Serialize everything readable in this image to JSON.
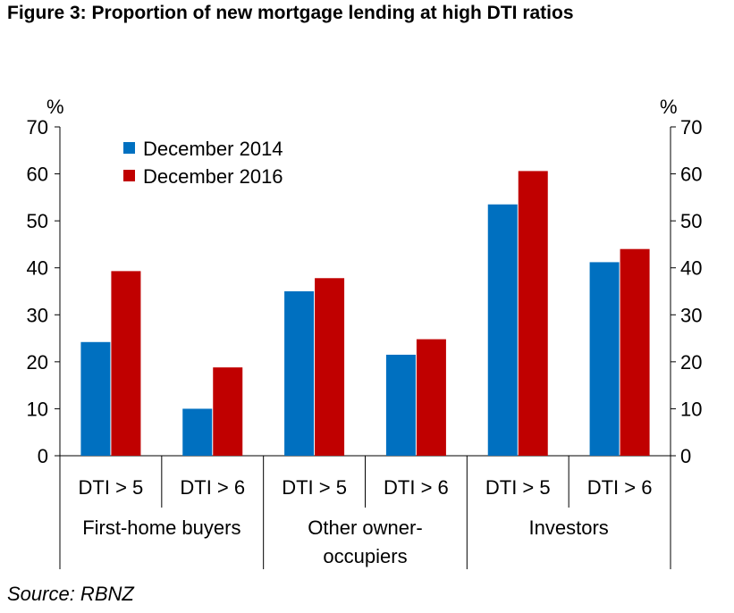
{
  "title": "Figure 3:  Proportion of new mortgage lending at high DTI ratios",
  "source": "Source: RBNZ",
  "colors": {
    "dec2014": "#0070C0",
    "dec2016": "#C00000"
  },
  "chart_data": {
    "type": "bar",
    "title": "Figure 3:  Proportion of new mortgage lending at high DTI ratios",
    "ylabel_left": "%",
    "ylabel_right": "%",
    "ylim": [
      0,
      70
    ],
    "yticks": [
      0,
      10,
      20,
      30,
      40,
      50,
      60,
      70
    ],
    "legend_placement": "top-left",
    "categories": [
      "DTI > 5",
      "DTI > 6",
      "DTI > 5",
      "DTI > 6",
      "DTI > 5",
      "DTI > 6"
    ],
    "groups": [
      {
        "lines": [
          "First-home buyers"
        ]
      },
      {
        "lines": [
          "Other owner-",
          "occupiers"
        ]
      },
      {
        "lines": [
          "Investors"
        ]
      }
    ],
    "series": [
      {
        "name": "December 2014",
        "color": "#0070C0",
        "values": [
          24.2,
          10,
          35,
          21.5,
          53.5,
          41.2
        ]
      },
      {
        "name": "December 2016",
        "color": "#C00000",
        "values": [
          39.3,
          18.8,
          37.8,
          24.8,
          60.6,
          44
        ]
      }
    ]
  }
}
